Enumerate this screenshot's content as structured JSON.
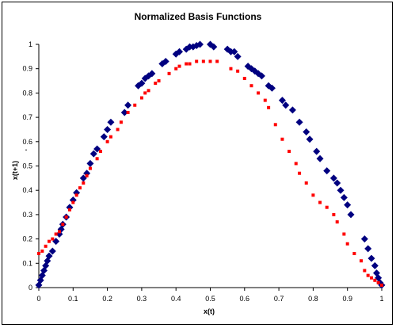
{
  "chart_data": {
    "type": "scatter",
    "title": "Normalized Basis Functions",
    "xlabel": "x(t)",
    "ylabel": "x(t+1)",
    "ylabel_suffix": ".",
    "xlim": [
      0,
      1
    ],
    "ylim": [
      0,
      1
    ],
    "xticks": [
      "0",
      "0.1",
      "0.2",
      "0.3",
      "0.4",
      "0.5",
      "0.6",
      "0.7",
      "0.8",
      "0.9",
      "1"
    ],
    "yticks": [
      "0",
      "0.1",
      "0.2",
      "0.3",
      "0.4",
      "0.5",
      "0.6",
      "0.7",
      "0.8",
      "0.9",
      "1"
    ],
    "grid": false,
    "legend": "none",
    "series": [
      {
        "marker": "diamond",
        "color": "#000080",
        "x": [
          0.0,
          0.005,
          0.01,
          0.015,
          0.02,
          0.025,
          0.03,
          0.04,
          0.05,
          0.06,
          0.065,
          0.07,
          0.08,
          0.09,
          0.1,
          0.11,
          0.13,
          0.14,
          0.15,
          0.16,
          0.17,
          0.19,
          0.2,
          0.21,
          0.25,
          0.26,
          0.29,
          0.3,
          0.31,
          0.32,
          0.33,
          0.36,
          0.37,
          0.4,
          0.41,
          0.43,
          0.44,
          0.45,
          0.46,
          0.47,
          0.5,
          0.51,
          0.55,
          0.56,
          0.57,
          0.58,
          0.61,
          0.62,
          0.63,
          0.64,
          0.65,
          0.67,
          0.68,
          0.71,
          0.72,
          0.74,
          0.76,
          0.78,
          0.79,
          0.81,
          0.82,
          0.84,
          0.86,
          0.87,
          0.88,
          0.89,
          0.9,
          0.91,
          0.95,
          0.96,
          0.97,
          0.98,
          0.985,
          0.99,
          0.995,
          1.0
        ],
        "y": [
          0.01,
          0.03,
          0.05,
          0.07,
          0.09,
          0.11,
          0.13,
          0.15,
          0.19,
          0.22,
          0.24,
          0.26,
          0.29,
          0.33,
          0.36,
          0.39,
          0.45,
          0.47,
          0.51,
          0.55,
          0.57,
          0.62,
          0.65,
          0.68,
          0.72,
          0.75,
          0.83,
          0.84,
          0.86,
          0.87,
          0.88,
          0.92,
          0.93,
          0.96,
          0.97,
          0.98,
          0.99,
          0.99,
          0.995,
          1.0,
          1.0,
          0.99,
          0.98,
          0.97,
          0.97,
          0.95,
          0.91,
          0.9,
          0.89,
          0.88,
          0.87,
          0.83,
          0.82,
          0.77,
          0.75,
          0.73,
          0.68,
          0.64,
          0.61,
          0.56,
          0.53,
          0.48,
          0.45,
          0.43,
          0.4,
          0.37,
          0.34,
          0.3,
          0.2,
          0.16,
          0.12,
          0.09,
          0.06,
          0.04,
          0.02,
          0.01
        ]
      },
      {
        "marker": "square",
        "color": "#ff0000",
        "x": [
          0.0,
          0.01,
          0.02,
          0.03,
          0.04,
          0.05,
          0.06,
          0.07,
          0.08,
          0.09,
          0.1,
          0.11,
          0.12,
          0.13,
          0.14,
          0.15,
          0.17,
          0.18,
          0.2,
          0.21,
          0.23,
          0.24,
          0.26,
          0.28,
          0.3,
          0.31,
          0.32,
          0.34,
          0.35,
          0.38,
          0.4,
          0.41,
          0.43,
          0.44,
          0.46,
          0.48,
          0.5,
          0.52,
          0.56,
          0.58,
          0.6,
          0.62,
          0.64,
          0.66,
          0.67,
          0.69,
          0.71,
          0.73,
          0.75,
          0.76,
          0.78,
          0.8,
          0.82,
          0.84,
          0.86,
          0.87,
          0.89,
          0.9,
          0.92,
          0.94,
          0.95,
          0.96,
          0.97,
          0.98,
          0.99,
          1.0
        ],
        "y": [
          0.14,
          0.15,
          0.17,
          0.19,
          0.2,
          0.22,
          0.23,
          0.26,
          0.29,
          0.32,
          0.35,
          0.38,
          0.41,
          0.43,
          0.46,
          0.49,
          0.53,
          0.56,
          0.6,
          0.62,
          0.65,
          0.68,
          0.72,
          0.75,
          0.78,
          0.8,
          0.81,
          0.84,
          0.85,
          0.88,
          0.9,
          0.91,
          0.92,
          0.92,
          0.93,
          0.93,
          0.93,
          0.93,
          0.9,
          0.89,
          0.86,
          0.83,
          0.8,
          0.77,
          0.74,
          0.67,
          0.61,
          0.56,
          0.51,
          0.47,
          0.43,
          0.38,
          0.35,
          0.33,
          0.3,
          0.27,
          0.22,
          0.18,
          0.14,
          0.11,
          0.07,
          0.05,
          0.04,
          0.03,
          0.02,
          0.01
        ]
      }
    ]
  }
}
